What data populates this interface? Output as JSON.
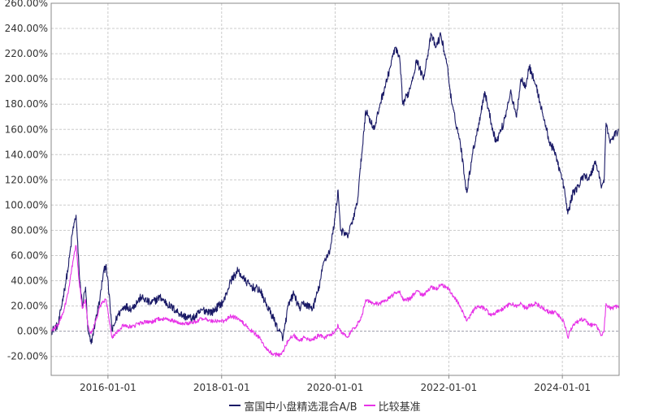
{
  "chart_data": {
    "type": "line",
    "title": "",
    "xlabel": "",
    "ylabel": "",
    "x_tick_labels": [
      "2016-01-01",
      "2018-01-01",
      "2020-01-01",
      "2022-01-01",
      "2024-01-01"
    ],
    "x_tick_dates": [
      "2016-01-01",
      "2018-01-01",
      "2020-01-01",
      "2022-01-01",
      "2024-01-01"
    ],
    "x_range": [
      "2015-01-01",
      "2024-12-31"
    ],
    "y_tick_labels": [
      "260.00%",
      "240.00%",
      "220.00%",
      "200.00%",
      "180.00%",
      "160.00%",
      "140.00%",
      "120.00%",
      "100.00%",
      "80.00%",
      "60.00%",
      "40.00%",
      "20.00%",
      "0.00%",
      "-20.00%"
    ],
    "ylim": [
      -35,
      260
    ],
    "grid": true,
    "legend_position": "bottom-center",
    "series": [
      {
        "name": "富国中小盘精选混合A/B",
        "color": "#1a1a66",
        "points": [
          [
            "2015-01-01",
            0
          ],
          [
            "2015-02-15",
            5
          ],
          [
            "2015-03-20",
            28
          ],
          [
            "2015-04-20",
            50
          ],
          [
            "2015-05-20",
            80
          ],
          [
            "2015-06-10",
            92
          ],
          [
            "2015-07-01",
            45
          ],
          [
            "2015-07-20",
            20
          ],
          [
            "2015-08-10",
            35
          ],
          [
            "2015-08-25",
            0
          ],
          [
            "2015-09-15",
            -10
          ],
          [
            "2015-10-15",
            10
          ],
          [
            "2015-11-10",
            25
          ],
          [
            "2015-12-01",
            45
          ],
          [
            "2015-12-20",
            53
          ],
          [
            "2016-01-15",
            20
          ],
          [
            "2016-01-28",
            0
          ],
          [
            "2016-03-01",
            12
          ],
          [
            "2016-04-15",
            20
          ],
          [
            "2016-06-01",
            18
          ],
          [
            "2016-08-01",
            27
          ],
          [
            "2016-10-01",
            22
          ],
          [
            "2016-12-01",
            27
          ],
          [
            "2017-02-01",
            20
          ],
          [
            "2017-05-01",
            12
          ],
          [
            "2017-07-01",
            10
          ],
          [
            "2017-09-01",
            17
          ],
          [
            "2017-11-01",
            15
          ],
          [
            "2018-01-15",
            24
          ],
          [
            "2018-03-01",
            40
          ],
          [
            "2018-04-15",
            48
          ],
          [
            "2018-06-01",
            40
          ],
          [
            "2018-07-15",
            35
          ],
          [
            "2018-09-01",
            33
          ],
          [
            "2018-10-20",
            20
          ],
          [
            "2018-12-01",
            10
          ],
          [
            "2019-01-05",
            0
          ],
          [
            "2019-01-31",
            -5
          ],
          [
            "2019-03-05",
            20
          ],
          [
            "2019-04-10",
            30
          ],
          [
            "2019-05-15",
            18
          ],
          [
            "2019-06-15",
            22
          ],
          [
            "2019-08-10",
            18
          ],
          [
            "2019-09-20",
            35
          ],
          [
            "2019-10-20",
            55
          ],
          [
            "2019-12-01",
            65
          ],
          [
            "2019-12-31",
            90
          ],
          [
            "2020-01-20",
            112
          ],
          [
            "2020-02-05",
            80
          ],
          [
            "2020-03-20",
            75
          ],
          [
            "2020-04-15",
            85
          ],
          [
            "2020-05-20",
            100
          ],
          [
            "2020-06-20",
            140
          ],
          [
            "2020-07-15",
            175
          ],
          [
            "2020-09-10",
            160
          ],
          [
            "2020-10-15",
            180
          ],
          [
            "2020-12-01",
            200
          ],
          [
            "2021-01-20",
            225
          ],
          [
            "2021-02-20",
            215
          ],
          [
            "2021-03-10",
            180
          ],
          [
            "2021-04-20",
            190
          ],
          [
            "2021-06-10",
            215
          ],
          [
            "2021-07-20",
            200
          ],
          [
            "2021-09-10",
            235
          ],
          [
            "2021-10-10",
            225
          ],
          [
            "2021-11-10",
            235
          ],
          [
            "2021-12-20",
            212
          ],
          [
            "2022-01-20",
            180
          ],
          [
            "2022-03-15",
            150
          ],
          [
            "2022-04-26",
            110
          ],
          [
            "2022-06-01",
            140
          ],
          [
            "2022-07-05",
            160
          ],
          [
            "2022-08-20",
            190
          ],
          [
            "2022-10-01",
            165
          ],
          [
            "2022-11-01",
            150
          ],
          [
            "2022-12-20",
            165
          ],
          [
            "2023-02-01",
            190
          ],
          [
            "2023-03-10",
            170
          ],
          [
            "2023-04-10",
            200
          ],
          [
            "2023-05-10",
            195
          ],
          [
            "2023-06-01",
            210
          ],
          [
            "2023-07-15",
            195
          ],
          [
            "2023-09-01",
            170
          ],
          [
            "2023-10-10",
            150
          ],
          [
            "2023-11-20",
            140
          ],
          [
            "2024-01-10",
            115
          ],
          [
            "2024-02-05",
            93
          ],
          [
            "2024-03-10",
            110
          ],
          [
            "2024-04-15",
            115
          ],
          [
            "2024-05-20",
            125
          ],
          [
            "2024-06-20",
            120
          ],
          [
            "2024-08-01",
            135
          ],
          [
            "2024-09-10",
            115
          ],
          [
            "2024-09-25",
            118
          ],
          [
            "2024-10-08",
            165
          ],
          [
            "2024-11-01",
            150
          ],
          [
            "2024-12-31",
            160
          ]
        ]
      },
      {
        "name": "比较基准",
        "color": "#e733e7",
        "points": [
          [
            "2015-01-01",
            0
          ],
          [
            "2015-02-15",
            5
          ],
          [
            "2015-03-20",
            15
          ],
          [
            "2015-04-20",
            30
          ],
          [
            "2015-05-20",
            55
          ],
          [
            "2015-06-10",
            68
          ],
          [
            "2015-07-01",
            38
          ],
          [
            "2015-07-20",
            18
          ],
          [
            "2015-08-10",
            25
          ],
          [
            "2015-08-25",
            5
          ],
          [
            "2015-09-15",
            -2
          ],
          [
            "2015-10-15",
            8
          ],
          [
            "2015-11-10",
            20
          ],
          [
            "2015-12-01",
            23
          ],
          [
            "2015-12-20",
            25
          ],
          [
            "2016-01-15",
            5
          ],
          [
            "2016-01-28",
            -5
          ],
          [
            "2016-03-01",
            0
          ],
          [
            "2016-04-15",
            5
          ],
          [
            "2016-06-01",
            3
          ],
          [
            "2016-08-01",
            7
          ],
          [
            "2016-10-01",
            7
          ],
          [
            "2016-12-01",
            10
          ],
          [
            "2017-02-01",
            9
          ],
          [
            "2017-05-01",
            6
          ],
          [
            "2017-07-01",
            7
          ],
          [
            "2017-09-01",
            10
          ],
          [
            "2017-11-01",
            8
          ],
          [
            "2018-01-15",
            8
          ],
          [
            "2018-03-01",
            12
          ],
          [
            "2018-04-15",
            10
          ],
          [
            "2018-06-01",
            5
          ],
          [
            "2018-07-15",
            0
          ],
          [
            "2018-09-01",
            -5
          ],
          [
            "2018-10-20",
            -15
          ],
          [
            "2018-12-01",
            -18
          ],
          [
            "2019-01-05",
            -19
          ],
          [
            "2019-01-31",
            -16
          ],
          [
            "2019-03-05",
            -7
          ],
          [
            "2019-04-10",
            -3
          ],
          [
            "2019-05-15",
            -8
          ],
          [
            "2019-06-15",
            -5
          ],
          [
            "2019-08-10",
            -7
          ],
          [
            "2019-09-20",
            -3
          ],
          [
            "2019-10-20",
            -5
          ],
          [
            "2019-12-01",
            -3
          ],
          [
            "2019-12-31",
            0
          ],
          [
            "2020-01-20",
            5
          ],
          [
            "2020-02-05",
            0
          ],
          [
            "2020-03-20",
            -5
          ],
          [
            "2020-04-15",
            0
          ],
          [
            "2020-05-20",
            5
          ],
          [
            "2020-06-20",
            12
          ],
          [
            "2020-07-15",
            25
          ],
          [
            "2020-09-10",
            22
          ],
          [
            "2020-10-15",
            22
          ],
          [
            "2020-12-01",
            25
          ],
          [
            "2021-01-20",
            30
          ],
          [
            "2021-02-20",
            32
          ],
          [
            "2021-03-10",
            25
          ],
          [
            "2021-04-20",
            25
          ],
          [
            "2021-06-10",
            32
          ],
          [
            "2021-07-20",
            28
          ],
          [
            "2021-09-10",
            35
          ],
          [
            "2021-10-10",
            33
          ],
          [
            "2021-11-10",
            37
          ],
          [
            "2021-12-20",
            35
          ],
          [
            "2022-01-20",
            30
          ],
          [
            "2022-03-15",
            20
          ],
          [
            "2022-04-26",
            8
          ],
          [
            "2022-06-01",
            15
          ],
          [
            "2022-07-05",
            20
          ],
          [
            "2022-08-20",
            18
          ],
          [
            "2022-10-01",
            12
          ],
          [
            "2022-11-01",
            15
          ],
          [
            "2022-12-20",
            18
          ],
          [
            "2023-02-01",
            22
          ],
          [
            "2023-03-10",
            20
          ],
          [
            "2023-04-10",
            22
          ],
          [
            "2023-05-10",
            18
          ],
          [
            "2023-06-01",
            20
          ],
          [
            "2023-07-15",
            22
          ],
          [
            "2023-09-01",
            18
          ],
          [
            "2023-10-10",
            15
          ],
          [
            "2023-11-20",
            15
          ],
          [
            "2024-01-10",
            8
          ],
          [
            "2024-02-05",
            -5
          ],
          [
            "2024-03-10",
            5
          ],
          [
            "2024-04-15",
            8
          ],
          [
            "2024-05-20",
            10
          ],
          [
            "2024-06-20",
            5
          ],
          [
            "2024-08-01",
            5
          ],
          [
            "2024-09-10",
            -3
          ],
          [
            "2024-09-25",
            0
          ],
          [
            "2024-10-08",
            22
          ],
          [
            "2024-11-01",
            18
          ],
          [
            "2024-12-31",
            20
          ]
        ]
      }
    ]
  }
}
